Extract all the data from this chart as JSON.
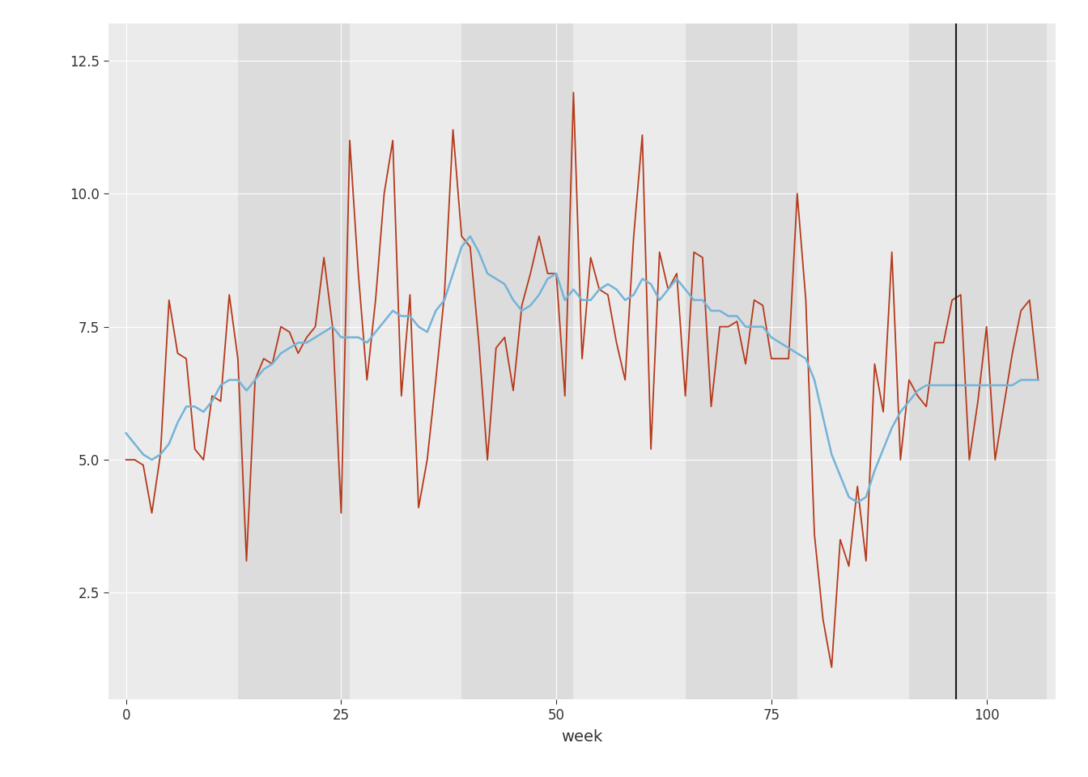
{
  "panel_bg": "#ebebeb",
  "figure_bg": "#ffffff",
  "grid_color": "#ffffff",
  "observed_color": "#b5391a",
  "fitted_color": "#74b3d8",
  "vline_color": "#1a1a1a",
  "vline_x": 96.5,
  "xlabel": "week",
  "xlabel_fontsize": 14,
  "tick_fontsize": 12,
  "ylim": [
    0.5,
    13.2
  ],
  "xlim": [
    -2,
    108
  ],
  "xticks": [
    0,
    25,
    50,
    75,
    100
  ],
  "yticks": [
    2.5,
    5.0,
    7.5,
    10.0,
    12.5
  ],
  "observed": [
    5.0,
    5.0,
    4.9,
    4.0,
    5.1,
    8.0,
    7.0,
    6.9,
    5.2,
    5.0,
    6.2,
    6.1,
    8.1,
    6.9,
    3.1,
    6.5,
    6.9,
    6.8,
    7.5,
    7.4,
    7.0,
    7.3,
    7.5,
    8.8,
    7.5,
    4.0,
    11.0,
    8.5,
    6.5,
    8.0,
    10.0,
    11.0,
    6.2,
    8.1,
    4.1,
    5.0,
    6.5,
    8.1,
    11.2,
    9.2,
    9.0,
    7.2,
    5.0,
    7.1,
    7.3,
    6.3,
    7.9,
    8.5,
    9.2,
    8.5,
    8.5,
    6.2,
    11.9,
    6.9,
    8.8,
    8.2,
    8.1,
    7.2,
    6.5,
    9.2,
    11.1,
    5.2,
    8.9,
    8.2,
    8.5,
    6.2,
    8.9,
    8.8,
    6.0,
    7.5,
    7.5,
    7.6,
    6.8,
    8.0,
    7.9,
    6.9,
    6.9,
    6.9,
    10.0,
    8.0,
    3.6,
    2.0,
    1.1,
    3.5,
    3.0,
    4.5,
    3.1,
    6.8,
    5.9,
    8.9,
    5.0,
    6.5,
    6.2,
    6.0,
    7.2,
    7.2,
    8.0,
    8.1,
    5.0,
    6.1,
    7.5,
    5.0,
    6.0,
    7.0,
    7.8,
    8.0,
    6.5
  ],
  "fitted": [
    5.5,
    5.3,
    5.1,
    5.0,
    5.1,
    5.3,
    5.7,
    6.0,
    6.0,
    5.9,
    6.1,
    6.4,
    6.5,
    6.5,
    6.3,
    6.5,
    6.7,
    6.8,
    7.0,
    7.1,
    7.2,
    7.2,
    7.3,
    7.4,
    7.5,
    7.3,
    7.3,
    7.3,
    7.2,
    7.4,
    7.6,
    7.8,
    7.7,
    7.7,
    7.5,
    7.4,
    7.8,
    8.0,
    8.5,
    9.0,
    9.2,
    8.9,
    8.5,
    8.4,
    8.3,
    8.0,
    7.8,
    7.9,
    8.1,
    8.4,
    8.5,
    8.0,
    8.2,
    8.0,
    8.0,
    8.2,
    8.3,
    8.2,
    8.0,
    8.1,
    8.4,
    8.3,
    8.0,
    8.2,
    8.4,
    8.2,
    8.0,
    8.0,
    7.8,
    7.8,
    7.7,
    7.7,
    7.5,
    7.5,
    7.5,
    7.3,
    7.2,
    7.1,
    7.0,
    6.9,
    6.5,
    5.8,
    5.1,
    4.7,
    4.3,
    4.2,
    4.3,
    4.8,
    5.2,
    5.6,
    5.9,
    6.1,
    6.3,
    6.4,
    6.4,
    6.4,
    6.4,
    6.4,
    6.4,
    6.4,
    6.4,
    6.4,
    6.4,
    6.4,
    6.5,
    6.5,
    6.5
  ],
  "band_edges": [
    0,
    13,
    26,
    39,
    52,
    65,
    78,
    91,
    107
  ],
  "band_color_light": "#ebebeb",
  "band_color_dark": "#dcdcdc"
}
